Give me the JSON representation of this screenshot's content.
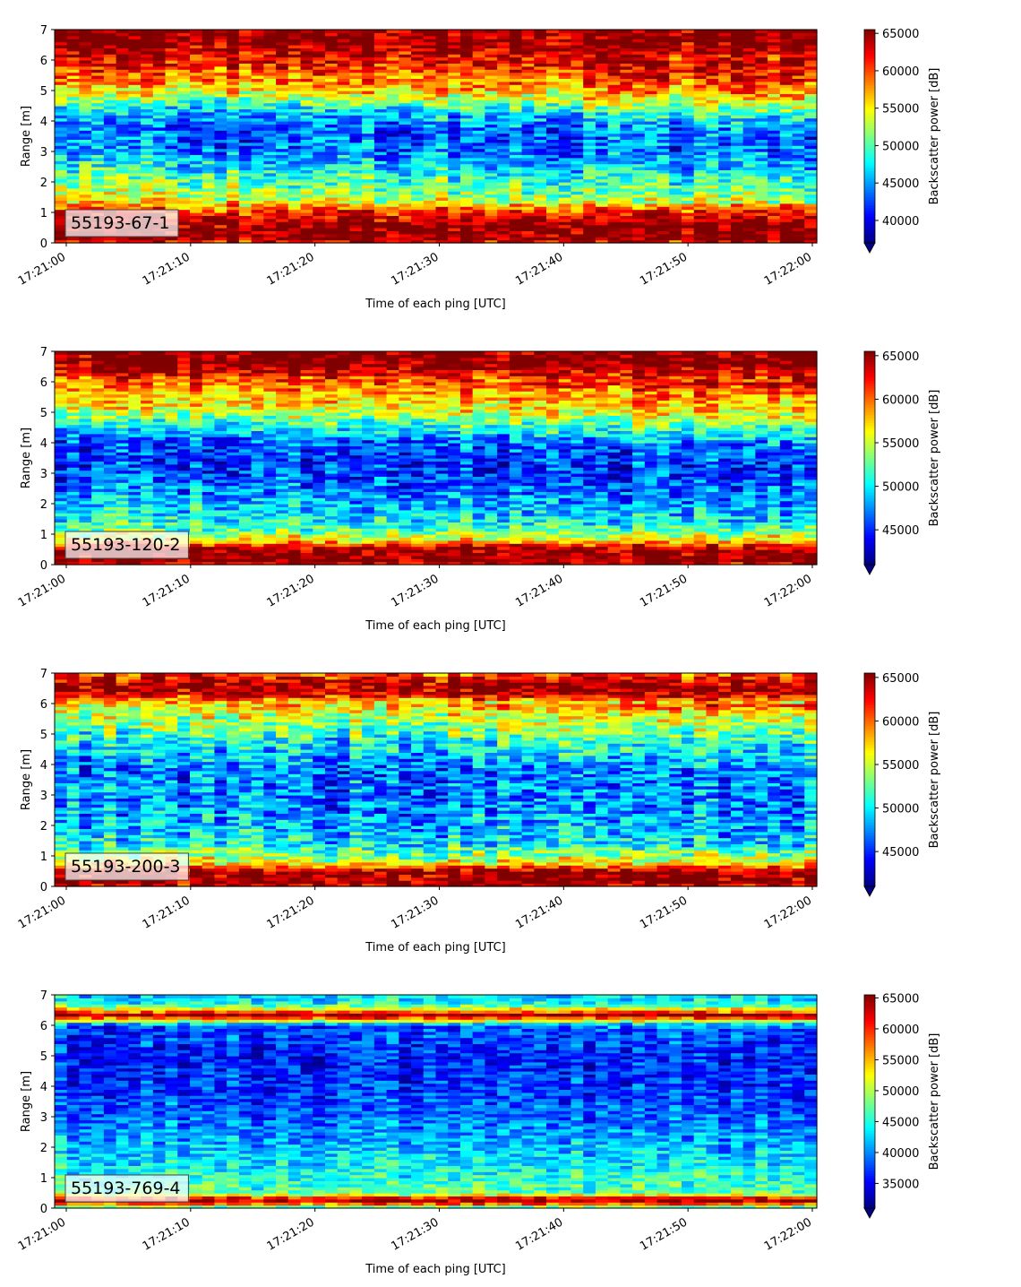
{
  "chart_data": [
    {
      "type": "heatmap",
      "panel_label": "55193-67-1",
      "xlabel": "Time of each ping [UTC]",
      "ylabel": "Range [m]",
      "colorbar_label": "Backscatter power [dB]",
      "colormap": "jet",
      "xlim": [
        "17:21:00",
        "17:22:00"
      ],
      "ylim": [
        0,
        7
      ],
      "x_ticks": [
        "17:21:00",
        "17:21:10",
        "17:21:20",
        "17:21:30",
        "17:21:40",
        "17:21:50",
        "17:22:00"
      ],
      "y_ticks": [
        0,
        1,
        2,
        3,
        4,
        5,
        6,
        7
      ],
      "color_range": [
        37000,
        65500
      ],
      "colorbar_ticks": [
        40000,
        45000,
        50000,
        55000,
        60000,
        65000
      ],
      "profile": [
        [
          0.0,
          61000
        ],
        [
          0.15,
          65500
        ],
        [
          0.6,
          65500
        ],
        [
          1.05,
          61000
        ],
        [
          1.3,
          56000
        ],
        [
          1.8,
          52000
        ],
        [
          2.5,
          48000
        ],
        [
          3.2,
          44000
        ],
        [
          3.8,
          43000
        ],
        [
          4.4,
          46000
        ],
        [
          4.9,
          53000
        ],
        [
          5.4,
          58000
        ],
        [
          5.9,
          61000
        ],
        [
          6.3,
          64000
        ],
        [
          6.6,
          65500
        ],
        [
          7.0,
          65500
        ]
      ],
      "drift": 0.4,
      "noise": 6000
    },
    {
      "type": "heatmap",
      "panel_label": "55193-120-2",
      "xlabel": "Time of each ping [UTC]",
      "ylabel": "Range [m]",
      "colorbar_label": "Backscatter power [dB]",
      "colormap": "jet",
      "xlim": [
        "17:21:00",
        "17:22:00"
      ],
      "ylim": [
        0,
        7
      ],
      "x_ticks": [
        "17:21:00",
        "17:21:10",
        "17:21:20",
        "17:21:30",
        "17:21:40",
        "17:21:50",
        "17:22:00"
      ],
      "y_ticks": [
        0,
        1,
        2,
        3,
        4,
        5,
        6,
        7
      ],
      "color_range": [
        41000,
        65500
      ],
      "colorbar_ticks": [
        45000,
        50000,
        55000,
        60000,
        65000
      ],
      "profile": [
        [
          0.0,
          62000
        ],
        [
          0.1,
          65500
        ],
        [
          0.5,
          65500
        ],
        [
          0.8,
          57000
        ],
        [
          1.2,
          52000
        ],
        [
          2.0,
          49000
        ],
        [
          2.8,
          46500
        ],
        [
          3.5,
          45000
        ],
        [
          4.2,
          46500
        ],
        [
          4.8,
          52000
        ],
        [
          5.3,
          56500
        ],
        [
          5.9,
          59000
        ],
        [
          6.3,
          63000
        ],
        [
          6.5,
          65500
        ],
        [
          7.0,
          65500
        ]
      ],
      "drift": 0.35,
      "noise": 5000
    },
    {
      "type": "heatmap",
      "panel_label": "55193-200-3",
      "xlabel": "Time of each ping [UTC]",
      "ylabel": "Range [m]",
      "colorbar_label": "Backscatter power [dB]",
      "colormap": "jet",
      "xlim": [
        "17:21:00",
        "17:22:00"
      ],
      "ylim": [
        0,
        7
      ],
      "x_ticks": [
        "17:21:00",
        "17:21:10",
        "17:21:20",
        "17:21:30",
        "17:21:40",
        "17:21:50",
        "17:22:00"
      ],
      "y_ticks": [
        0,
        1,
        2,
        3,
        4,
        5,
        6,
        7
      ],
      "color_range": [
        41000,
        65500
      ],
      "colorbar_ticks": [
        45000,
        50000,
        55000,
        60000,
        65000
      ],
      "profile": [
        [
          0.0,
          62000
        ],
        [
          0.1,
          65500
        ],
        [
          0.5,
          65500
        ],
        [
          0.8,
          56000
        ],
        [
          1.3,
          51000
        ],
        [
          2.0,
          48500
        ],
        [
          3.0,
          47000
        ],
        [
          4.0,
          47000
        ],
        [
          4.8,
          50000
        ],
        [
          5.4,
          53500
        ],
        [
          6.0,
          56500
        ],
        [
          6.3,
          63000
        ],
        [
          6.5,
          65500
        ],
        [
          6.8,
          63000
        ],
        [
          7.0,
          60000
        ]
      ],
      "drift": 0.3,
      "noise": 5500
    },
    {
      "type": "heatmap",
      "panel_label": "55193-769-4",
      "xlabel": "Time of each ping [UTC]",
      "ylabel": "Range [m]",
      "colorbar_label": "Backscatter power [dB]",
      "colormap": "jet",
      "xlim": [
        "17:21:00",
        "17:22:00"
      ],
      "ylim": [
        0,
        7
      ],
      "x_ticks": [
        "17:21:00",
        "17:21:10",
        "17:21:20",
        "17:21:30",
        "17:21:40",
        "17:21:50",
        "17:22:00"
      ],
      "y_ticks": [
        0,
        1,
        2,
        3,
        4,
        5,
        6,
        7
      ],
      "color_range": [
        31000,
        65500
      ],
      "colorbar_ticks": [
        35000,
        40000,
        45000,
        50000,
        55000,
        60000,
        65000
      ],
      "profile": [
        [
          0.0,
          46000
        ],
        [
          0.1,
          50000
        ],
        [
          0.2,
          65500
        ],
        [
          0.35,
          60000
        ],
        [
          0.5,
          47000
        ],
        [
          1.0,
          45000
        ],
        [
          2.0,
          42000
        ],
        [
          3.0,
          39000
        ],
        [
          4.0,
          37000
        ],
        [
          5.0,
          36500
        ],
        [
          6.0,
          38000
        ],
        [
          6.2,
          55000
        ],
        [
          6.35,
          65500
        ],
        [
          6.5,
          55000
        ],
        [
          6.7,
          45000
        ],
        [
          7.0,
          42000
        ]
      ],
      "drift": 0.1,
      "noise": 5500
    }
  ]
}
